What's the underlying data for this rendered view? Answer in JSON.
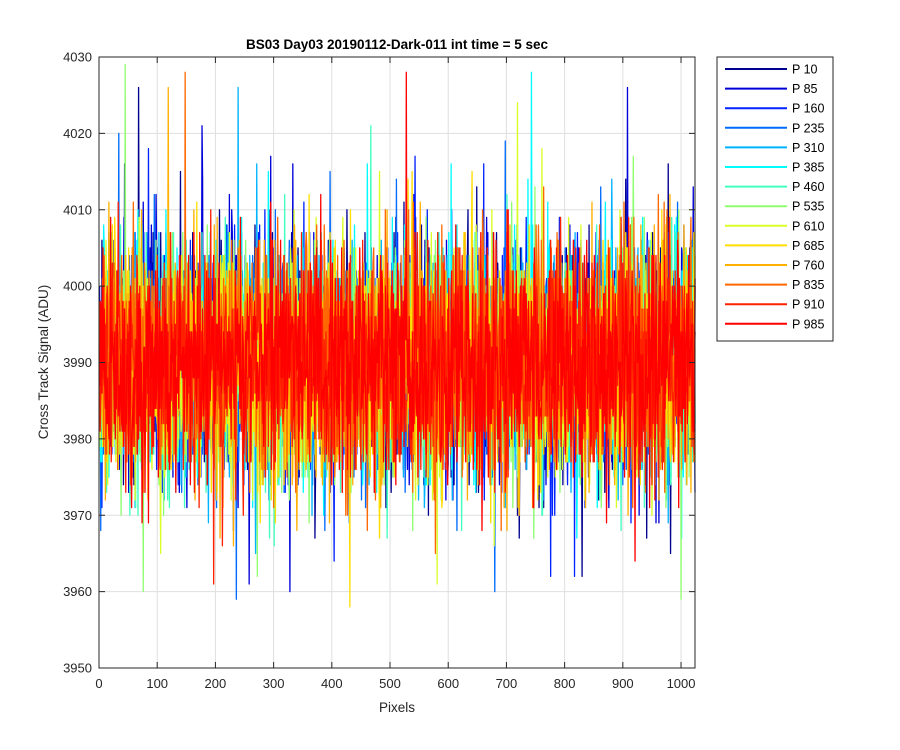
{
  "chart_data": {
    "type": "line",
    "title": "BS03 Day03 20190112-Dark-011 int time = 5 sec",
    "xlabel": "Pixels",
    "ylabel": "Cross Track Signal (ADU)",
    "xlim": [
      0,
      1024
    ],
    "ylim": [
      3950,
      4030
    ],
    "xticks": [
      0,
      100,
      200,
      300,
      400,
      500,
      600,
      700,
      800,
      900,
      1000
    ],
    "yticks": [
      3950,
      3960,
      3970,
      3980,
      3990,
      4000,
      4010,
      4020,
      4030
    ],
    "grid": true,
    "legend_position": "outside-top-right",
    "noise_model": {
      "pixel_count": 1024,
      "mean": 3990,
      "std": 7.5,
      "min": 3958,
      "max": 4029
    },
    "series": [
      {
        "name": "P 10",
        "color": "#00008f",
        "peaks": [
          {
            "x": 67,
            "y": 4026
          },
          {
            "x": 206,
            "y": 4010
          },
          {
            "x": 829,
            "y": 3962
          }
        ]
      },
      {
        "name": "P 85",
        "color": "#0000d9",
        "peaks": [
          {
            "x": 176,
            "y": 4021
          },
          {
            "x": 907,
            "y": 4026
          },
          {
            "x": 327,
            "y": 3960
          }
        ]
      },
      {
        "name": "P 160",
        "color": "#0023ff",
        "peaks": [
          {
            "x": 84,
            "y": 4018
          },
          {
            "x": 660,
            "y": 4016
          },
          {
            "x": 816,
            "y": 3962
          }
        ]
      },
      {
        "name": "P 235",
        "color": "#006bff",
        "peaks": [
          {
            "x": 33,
            "y": 4020
          },
          {
            "x": 510,
            "y": 4014
          },
          {
            "x": 235,
            "y": 3959
          }
        ]
      },
      {
        "name": "P 310",
        "color": "#00b3ff",
        "peaks": [
          {
            "x": 238,
            "y": 4026
          },
          {
            "x": 880,
            "y": 4014
          },
          {
            "x": 268,
            "y": 3965
          }
        ]
      },
      {
        "name": "P 385",
        "color": "#00fbff",
        "peaks": [
          {
            "x": 742,
            "y": 4028
          },
          {
            "x": 604,
            "y": 4016
          },
          {
            "x": 820,
            "y": 3967
          }
        ]
      },
      {
        "name": "P 460",
        "color": "#40ffbf",
        "peaks": [
          {
            "x": 466,
            "y": 4021
          },
          {
            "x": 700,
            "y": 4012
          },
          {
            "x": 300,
            "y": 3966
          }
        ]
      },
      {
        "name": "P 535",
        "color": "#8fff70",
        "peaks": [
          {
            "x": 44,
            "y": 4029
          },
          {
            "x": 995,
            "y": 4010
          },
          {
            "x": 999,
            "y": 3959
          }
        ]
      },
      {
        "name": "P 610",
        "color": "#d9ff26",
        "peaks": [
          {
            "x": 718,
            "y": 4024
          },
          {
            "x": 760,
            "y": 4018
          },
          {
            "x": 580,
            "y": 3961
          }
        ]
      },
      {
        "name": "P 685",
        "color": "#ffdd00",
        "peaks": [
          {
            "x": 360,
            "y": 4012
          },
          {
            "x": 640,
            "y": 4015
          },
          {
            "x": 430,
            "y": 3958
          }
        ]
      },
      {
        "name": "P 760",
        "color": "#ffb000",
        "peaks": [
          {
            "x": 118,
            "y": 4026
          },
          {
            "x": 980,
            "y": 4012
          },
          {
            "x": 230,
            "y": 3966
          }
        ]
      },
      {
        "name": "P 835",
        "color": "#ff6800",
        "peaks": [
          {
            "x": 147,
            "y": 4028
          },
          {
            "x": 960,
            "y": 4012
          },
          {
            "x": 460,
            "y": 3968
          }
        ]
      },
      {
        "name": "P 910",
        "color": "#ff2000",
        "peaks": [
          {
            "x": 191,
            "y": 4010
          },
          {
            "x": 700,
            "y": 4010
          },
          {
            "x": 196,
            "y": 3961
          }
        ]
      },
      {
        "name": "P 985",
        "color": "#ff0000",
        "peaks": [
          {
            "x": 527,
            "y": 4028
          },
          {
            "x": 380,
            "y": 4012
          },
          {
            "x": 920,
            "y": 3964
          }
        ]
      }
    ]
  }
}
